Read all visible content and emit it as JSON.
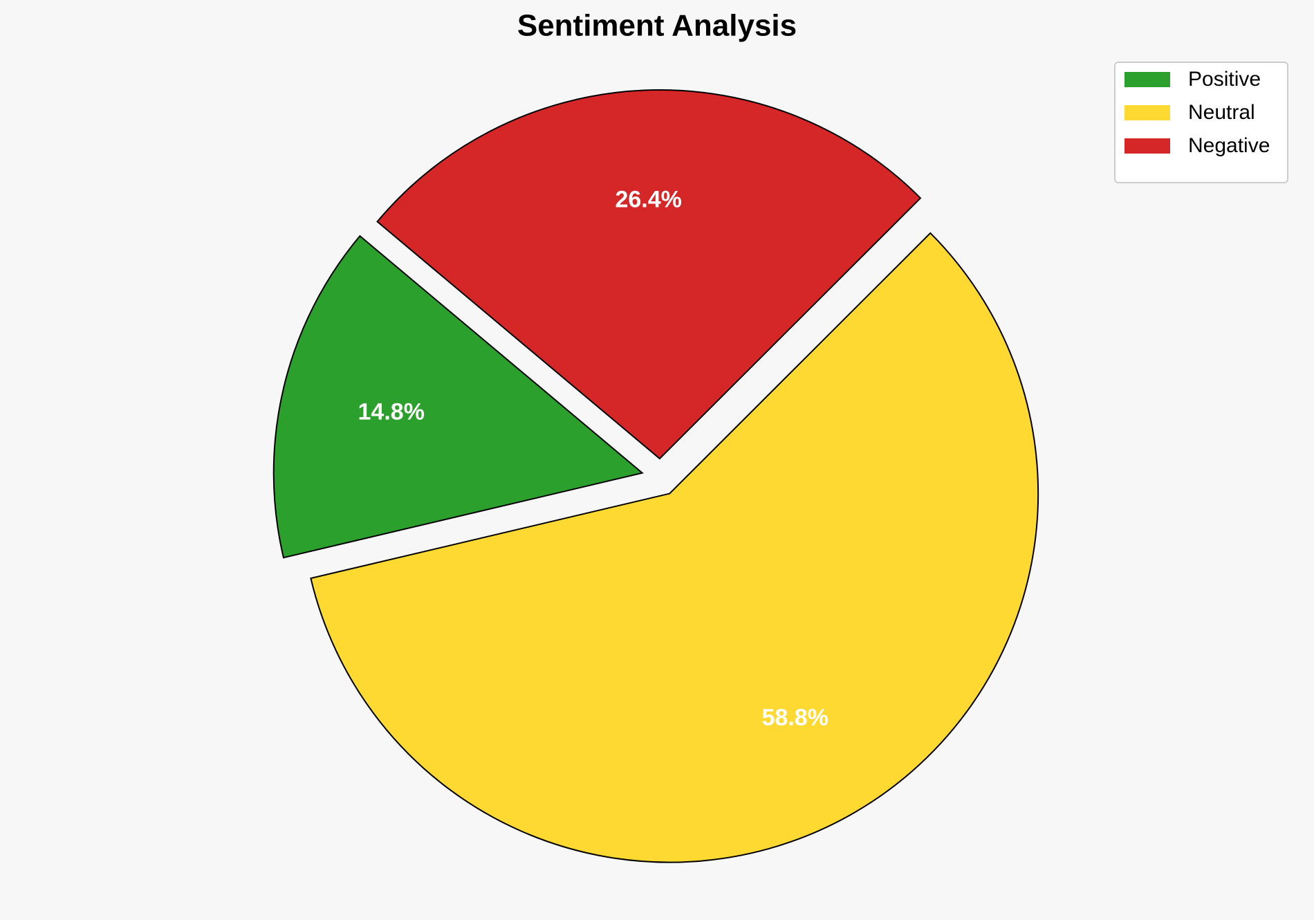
{
  "chart_data": {
    "type": "pie",
    "title": "Sentiment Analysis",
    "categories": [
      "Positive",
      "Neutral",
      "Negative"
    ],
    "values": [
      14.8,
      58.8,
      26.4
    ],
    "value_labels": [
      "14.8%",
      "58.8%",
      "26.4%"
    ],
    "colors": [
      "#2ca02c",
      "#fed932",
      "#d62728"
    ],
    "legend": "upper right"
  }
}
